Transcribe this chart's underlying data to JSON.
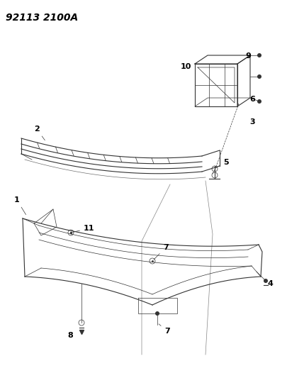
{
  "title_code": "92113 2100A",
  "background_color": "#ffffff",
  "line_color": "#333333",
  "label_color": "#000000",
  "title_fontsize": 10,
  "label_fontsize": 8,
  "fig_width": 4.06,
  "fig_height": 5.33,
  "dpi": 100
}
